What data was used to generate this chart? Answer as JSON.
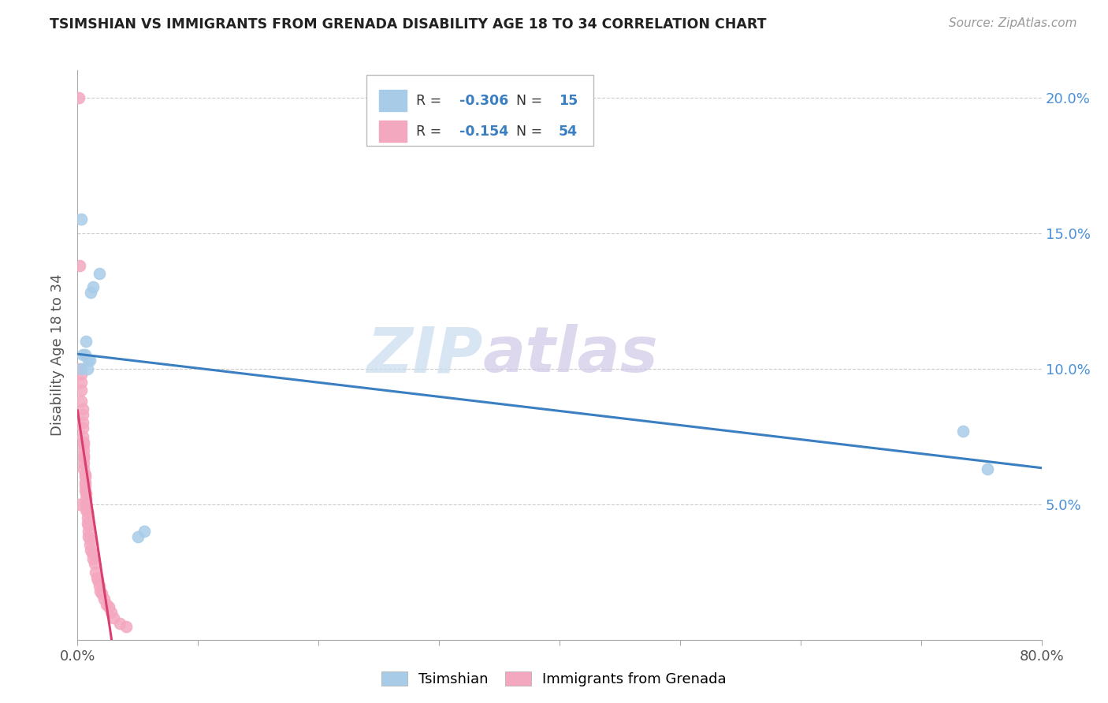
{
  "title": "TSIMSHIAN VS IMMIGRANTS FROM GRENADA DISABILITY AGE 18 TO 34 CORRELATION CHART",
  "source": "Source: ZipAtlas.com",
  "ylabel": "Disability Age 18 to 34",
  "xlim": [
    0,
    0.8
  ],
  "ylim": [
    0,
    0.21
  ],
  "xticks": [
    0.0,
    0.1,
    0.2,
    0.3,
    0.4,
    0.5,
    0.6,
    0.7,
    0.8
  ],
  "yticks": [
    0.0,
    0.05,
    0.1,
    0.15,
    0.2
  ],
  "legend1_R": "-0.306",
  "legend1_N": "15",
  "legend2_R": "-0.154",
  "legend2_N": "54",
  "blue_color": "#a8cce8",
  "pink_color": "#f4a8c0",
  "blue_line_color": "#3a7fc1",
  "pink_line_color": "#d94070",
  "watermark_zip": "ZIP",
  "watermark_atlas": "atlas",
  "tsimshian_x": [
    0.003,
    0.004,
    0.006,
    0.007,
    0.008,
    0.009,
    0.01,
    0.011,
    0.013,
    0.018,
    0.05,
    0.055,
    0.735,
    0.755,
    0.003
  ],
  "tsimshian_y": [
    0.1,
    0.105,
    0.105,
    0.11,
    0.1,
    0.103,
    0.103,
    0.128,
    0.13,
    0.135,
    0.038,
    0.04,
    0.077,
    0.063,
    0.155
  ],
  "grenada_x": [
    0.001,
    0.002,
    0.002,
    0.003,
    0.003,
    0.003,
    0.003,
    0.004,
    0.004,
    0.004,
    0.004,
    0.004,
    0.005,
    0.005,
    0.005,
    0.005,
    0.005,
    0.005,
    0.005,
    0.006,
    0.006,
    0.006,
    0.006,
    0.006,
    0.007,
    0.007,
    0.007,
    0.007,
    0.008,
    0.008,
    0.008,
    0.009,
    0.009,
    0.009,
    0.01,
    0.01,
    0.011,
    0.012,
    0.013,
    0.014,
    0.015,
    0.016,
    0.017,
    0.018,
    0.019,
    0.02,
    0.022,
    0.024,
    0.026,
    0.028,
    0.03,
    0.035,
    0.04,
    0.002
  ],
  "grenada_y": [
    0.2,
    0.138,
    0.1,
    0.098,
    0.095,
    0.092,
    0.088,
    0.085,
    0.083,
    0.08,
    0.078,
    0.075,
    0.073,
    0.072,
    0.07,
    0.068,
    0.067,
    0.065,
    0.063,
    0.061,
    0.06,
    0.058,
    0.057,
    0.055,
    0.054,
    0.052,
    0.05,
    0.048,
    0.047,
    0.045,
    0.043,
    0.042,
    0.04,
    0.038,
    0.037,
    0.035,
    0.033,
    0.032,
    0.03,
    0.028,
    0.025,
    0.023,
    0.022,
    0.02,
    0.018,
    0.017,
    0.015,
    0.013,
    0.012,
    0.01,
    0.008,
    0.006,
    0.005,
    0.05
  ]
}
